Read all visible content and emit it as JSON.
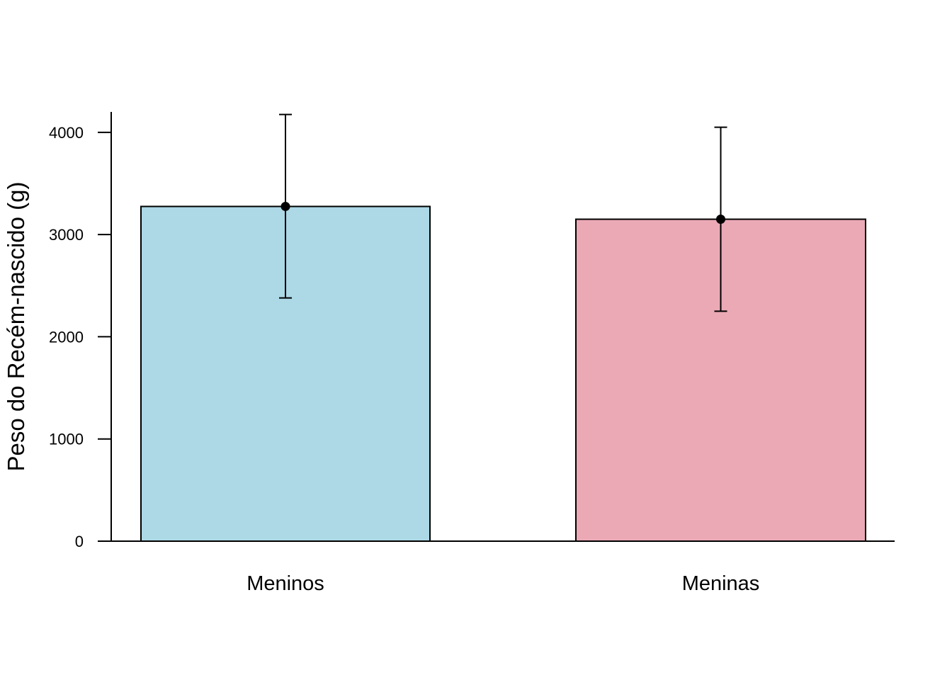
{
  "chart_data": {
    "type": "bar",
    "categories": [
      "Meninos",
      "Meninas"
    ],
    "values": [
      3275,
      3150
    ],
    "error_bars": [
      {
        "lower": 2380,
        "upper": 4175
      },
      {
        "lower": 2250,
        "upper": 4050
      }
    ],
    "colors": [
      "#ADD8E6",
      "#EBA9B6"
    ],
    "xlabel": "",
    "ylabel": "Peso do Recém-nascido (g)",
    "ylim": [
      0,
      4200
    ],
    "yticks": [
      0,
      1000,
      2000,
      3000,
      4000
    ],
    "grid": false,
    "legend": "none"
  }
}
